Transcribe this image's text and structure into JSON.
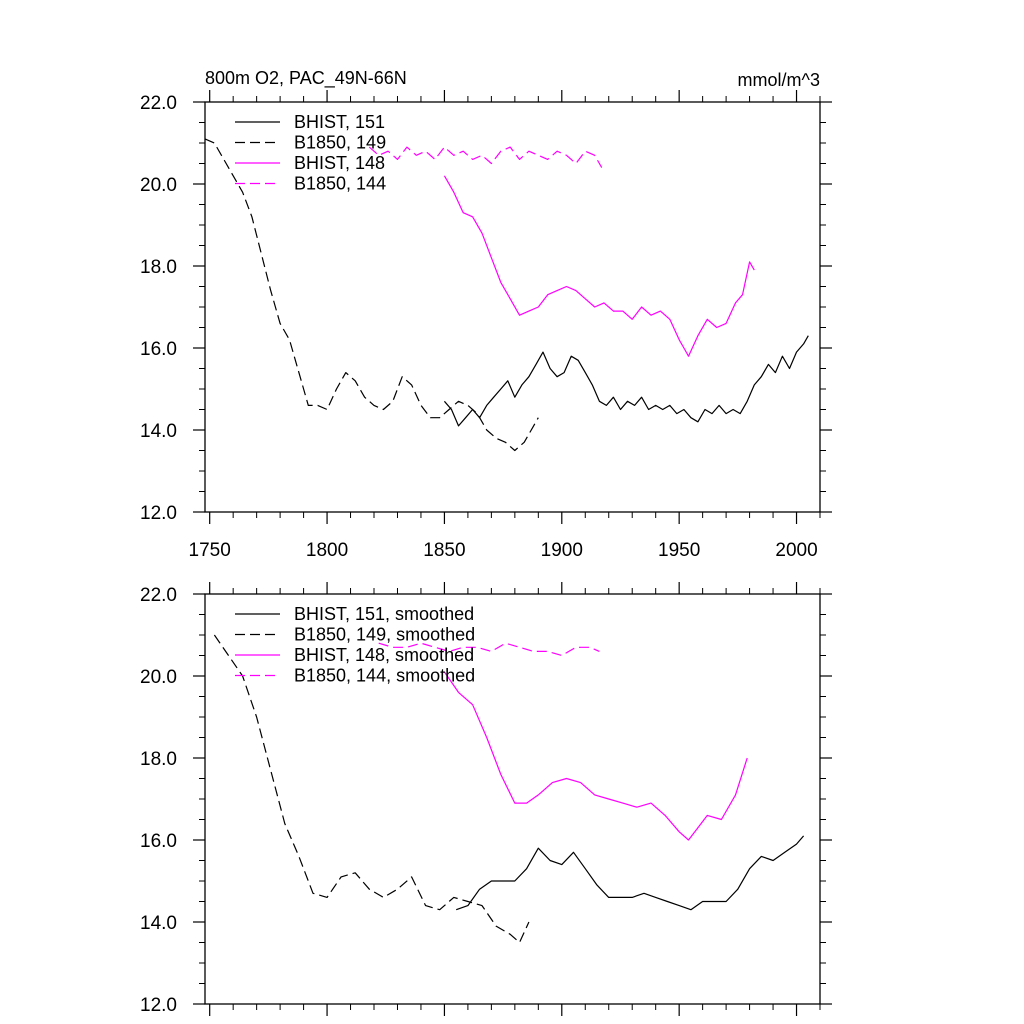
{
  "title_left": "800m O2, PAC_49N-66N",
  "title_right": "mmol/m^3",
  "colors": {
    "hist": "#000000",
    "b1850_magenta": "#ff00ff",
    "axis": "#000000"
  },
  "chart_data": [
    {
      "type": "line",
      "xlim": [
        1748,
        2010
      ],
      "ylim": [
        12.0,
        22.0
      ],
      "xticks": [
        1750,
        1800,
        1850,
        1900,
        1950,
        2000
      ],
      "yticks": [
        12.0,
        14.0,
        16.0,
        18.0,
        20.0,
        22.0
      ],
      "xtick_labels": [
        "1750",
        "1800",
        "1850",
        "1900",
        "1950",
        "2000"
      ],
      "ytick_labels": [
        "12.0",
        "14.0",
        "16.0",
        "18.0",
        "20.0",
        "22.0"
      ],
      "legend_position": "top-left",
      "series": [
        {
          "name": "BHIST, 151",
          "color": "#000000",
          "dash": "solid",
          "x": [
            1850,
            1853,
            1856,
            1859,
            1862,
            1865,
            1868,
            1871,
            1874,
            1877,
            1880,
            1883,
            1886,
            1889,
            1892,
            1895,
            1898,
            1901,
            1904,
            1907,
            1910,
            1913,
            1916,
            1919,
            1922,
            1925,
            1928,
            1931,
            1934,
            1937,
            1940,
            1943,
            1946,
            1949,
            1952,
            1955,
            1958,
            1961,
            1964,
            1967,
            1970,
            1973,
            1976,
            1979,
            1982,
            1985,
            1988,
            1991,
            1994,
            1997,
            2000,
            2003,
            2005
          ],
          "y": [
            14.7,
            14.5,
            14.1,
            14.3,
            14.5,
            14.3,
            14.6,
            14.8,
            15.0,
            15.2,
            14.8,
            15.1,
            15.3,
            15.6,
            15.9,
            15.5,
            15.3,
            15.4,
            15.8,
            15.7,
            15.4,
            15.1,
            14.7,
            14.6,
            14.8,
            14.5,
            14.7,
            14.6,
            14.8,
            14.5,
            14.6,
            14.5,
            14.6,
            14.4,
            14.5,
            14.3,
            14.2,
            14.5,
            14.4,
            14.6,
            14.4,
            14.5,
            14.4,
            14.7,
            15.1,
            15.3,
            15.6,
            15.4,
            15.8,
            15.5,
            15.9,
            16.1,
            16.3
          ]
        },
        {
          "name": "B1850, 149",
          "color": "#000000",
          "dash": "dashed",
          "x": [
            1748,
            1752,
            1756,
            1760,
            1764,
            1768,
            1772,
            1776,
            1780,
            1784,
            1788,
            1792,
            1796,
            1800,
            1804,
            1808,
            1812,
            1816,
            1820,
            1824,
            1828,
            1832,
            1836,
            1840,
            1844,
            1848,
            1852,
            1856,
            1860,
            1864,
            1868,
            1872,
            1876,
            1880,
            1884,
            1888,
            1890
          ],
          "y": [
            21.1,
            21.0,
            20.6,
            20.2,
            19.8,
            19.2,
            18.3,
            17.4,
            16.6,
            16.2,
            15.4,
            14.6,
            14.6,
            14.5,
            15.0,
            15.4,
            15.2,
            14.8,
            14.6,
            14.5,
            14.7,
            15.3,
            15.1,
            14.6,
            14.3,
            14.3,
            14.5,
            14.7,
            14.6,
            14.4,
            14.0,
            13.8,
            13.7,
            13.5,
            13.7,
            14.1,
            14.3
          ]
        },
        {
          "name": "BHIST, 148",
          "color": "#ff00ff",
          "dash": "solid",
          "x": [
            1850,
            1854,
            1858,
            1862,
            1866,
            1870,
            1874,
            1878,
            1882,
            1886,
            1890,
            1894,
            1898,
            1902,
            1906,
            1910,
            1914,
            1918,
            1922,
            1926,
            1930,
            1934,
            1938,
            1942,
            1946,
            1950,
            1952,
            1954,
            1958,
            1962,
            1966,
            1970,
            1974,
            1977,
            1980,
            1982
          ],
          "y": [
            20.2,
            19.8,
            19.3,
            19.2,
            18.8,
            18.2,
            17.6,
            17.2,
            16.8,
            16.9,
            17.0,
            17.3,
            17.4,
            17.5,
            17.4,
            17.2,
            17.0,
            17.1,
            16.9,
            16.9,
            16.7,
            17.0,
            16.8,
            16.9,
            16.7,
            16.2,
            16.0,
            15.8,
            16.3,
            16.7,
            16.5,
            16.6,
            17.1,
            17.3,
            18.1,
            17.9
          ]
        },
        {
          "name": "B1850, 144",
          "color": "#ff00ff",
          "dash": "dashed",
          "x": [
            1818,
            1822,
            1826,
            1830,
            1834,
            1838,
            1842,
            1846,
            1850,
            1854,
            1858,
            1862,
            1866,
            1870,
            1874,
            1878,
            1882,
            1886,
            1890,
            1894,
            1898,
            1902,
            1906,
            1910,
            1914,
            1917
          ],
          "y": [
            20.9,
            20.7,
            20.8,
            20.6,
            20.9,
            20.7,
            20.8,
            20.6,
            20.9,
            20.7,
            20.8,
            20.6,
            20.7,
            20.5,
            20.8,
            20.9,
            20.6,
            20.8,
            20.7,
            20.6,
            20.8,
            20.7,
            20.5,
            20.8,
            20.7,
            20.4
          ]
        }
      ]
    },
    {
      "type": "line",
      "xlim": [
        1748,
        2010
      ],
      "ylim": [
        12.0,
        22.0
      ],
      "xticks": [
        1750,
        1800,
        1850,
        1900,
        1950,
        2000
      ],
      "yticks": [
        12.0,
        14.0,
        16.0,
        18.0,
        20.0,
        22.0
      ],
      "ytick_labels": [
        "12.0",
        "14.0",
        "16.0",
        "18.0",
        "20.0",
        "22.0"
      ],
      "legend_position": "top-left",
      "series": [
        {
          "name": "BHIST, 151, smoothed",
          "color": "#000000",
          "dash": "solid",
          "x": [
            1855,
            1860,
            1865,
            1870,
            1875,
            1880,
            1885,
            1890,
            1895,
            1900,
            1905,
            1910,
            1915,
            1920,
            1925,
            1930,
            1935,
            1940,
            1945,
            1950,
            1955,
            1960,
            1965,
            1970,
            1975,
            1980,
            1985,
            1990,
            1995,
            2000,
            2003
          ],
          "y": [
            14.3,
            14.4,
            14.8,
            15.0,
            15.0,
            15.0,
            15.3,
            15.8,
            15.5,
            15.4,
            15.7,
            15.3,
            14.9,
            14.6,
            14.6,
            14.6,
            14.7,
            14.6,
            14.5,
            14.4,
            14.3,
            14.5,
            14.5,
            14.5,
            14.8,
            15.3,
            15.6,
            15.5,
            15.7,
            15.9,
            16.1
          ]
        },
        {
          "name": "B1850, 149, smoothed",
          "color": "#000000",
          "dash": "dashed",
          "x": [
            1752,
            1758,
            1764,
            1770,
            1776,
            1782,
            1788,
            1794,
            1800,
            1806,
            1812,
            1818,
            1824,
            1830,
            1836,
            1842,
            1848,
            1854,
            1860,
            1866,
            1872,
            1878,
            1882,
            1886
          ],
          "y": [
            21.0,
            20.5,
            20.0,
            19.0,
            17.7,
            16.4,
            15.6,
            14.7,
            14.6,
            15.1,
            15.2,
            14.8,
            14.6,
            14.8,
            15.1,
            14.4,
            14.3,
            14.6,
            14.5,
            14.4,
            13.9,
            13.7,
            13.5,
            14.0
          ]
        },
        {
          "name": "BHIST, 148, smoothed",
          "color": "#ff00ff",
          "dash": "solid",
          "x": [
            1850,
            1856,
            1862,
            1868,
            1874,
            1880,
            1885,
            1890,
            1896,
            1902,
            1908,
            1914,
            1920,
            1926,
            1932,
            1938,
            1944,
            1950,
            1954,
            1958,
            1962,
            1968,
            1974,
            1979
          ],
          "y": [
            20.1,
            19.6,
            19.3,
            18.5,
            17.6,
            16.9,
            16.9,
            17.1,
            17.4,
            17.5,
            17.4,
            17.1,
            17.0,
            16.9,
            16.8,
            16.9,
            16.6,
            16.2,
            16.0,
            16.3,
            16.6,
            16.5,
            17.1,
            18.0
          ]
        },
        {
          "name": "B1850, 144, smoothed",
          "color": "#ff00ff",
          "dash": "dashed",
          "x": [
            1822,
            1828,
            1834,
            1840,
            1846,
            1852,
            1858,
            1864,
            1870,
            1876,
            1882,
            1888,
            1894,
            1900,
            1906,
            1912,
            1916
          ],
          "y": [
            20.8,
            20.7,
            20.7,
            20.8,
            20.7,
            20.6,
            20.7,
            20.7,
            20.6,
            20.8,
            20.7,
            20.6,
            20.6,
            20.5,
            20.7,
            20.7,
            20.6
          ]
        }
      ]
    }
  ]
}
